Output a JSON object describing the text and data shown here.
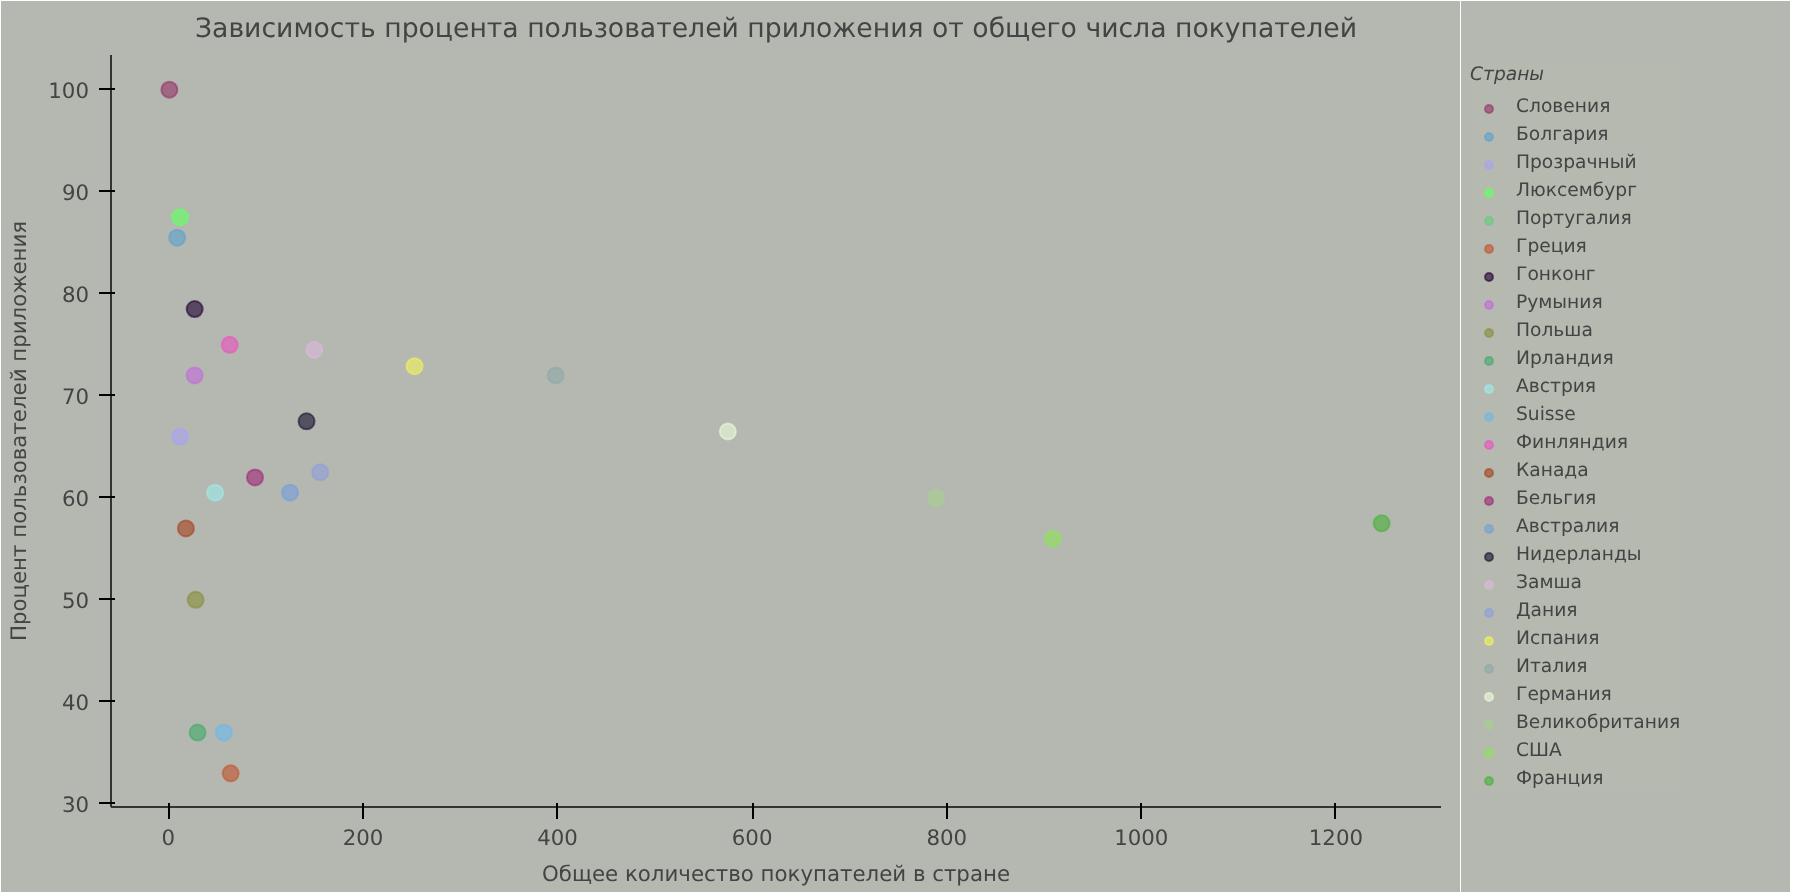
{
  "chart_data": {
    "type": "scatter",
    "title": "Зависимость процента пользователей приложения от общего числа покупателей",
    "xlabel": "Общее количество покупателей в стране",
    "ylabel": "Процент пользователей приложения",
    "legend_title": "Страны",
    "legend": "right",
    "marker": "circle",
    "grid": false,
    "xlim": [
      -59,
      1308
    ],
    "ylim": [
      29.7,
      103.4
    ],
    "xticks": [
      0,
      200,
      400,
      600,
      800,
      1000,
      1200
    ],
    "yticks": [
      30,
      40,
      50,
      60,
      70,
      80,
      90,
      100
    ],
    "series": [
      {
        "name": "Словения",
        "color": "#953c6c",
        "x": [
          1
        ],
        "values": [
          100
        ]
      },
      {
        "name": "Болгария",
        "color": "#62a3cc",
        "x": [
          9
        ],
        "values": [
          85.5
        ]
      },
      {
        "name": "Прозрачный",
        "color": "#a7a5f0",
        "x": [
          12
        ],
        "values": [
          66
        ]
      },
      {
        "name": "Люксембург",
        "color": "#66ff66",
        "x": [
          12
        ],
        "values": [
          87.5
        ]
      },
      {
        "name": "Португалия",
        "color": "#6dc980",
        "x": [
          null
        ],
        "values": [
          null
        ]
      },
      {
        "name": "Греция",
        "color": "#c05a38",
        "x": [
          64
        ],
        "values": [
          33
        ]
      },
      {
        "name": "Гонконг",
        "color": "#2a0a3a",
        "x": [
          27
        ],
        "values": [
          78.5
        ]
      },
      {
        "name": "Румыния",
        "color": "#c070d8",
        "x": [
          27
        ],
        "values": [
          72
        ]
      },
      {
        "name": "Польша",
        "color": "#8c9040",
        "x": [
          28
        ],
        "values": [
          50
        ]
      },
      {
        "name": "Ирландия",
        "color": "#4aaa70",
        "x": [
          30
        ],
        "values": [
          37
        ]
      },
      {
        "name": "Австрия",
        "color": "#a0e8e8",
        "x": [
          48
        ],
        "values": [
          60.5
        ]
      },
      {
        "name": "Suisse",
        "color": "#70b8e8",
        "x": [
          57
        ],
        "values": [
          37
        ]
      },
      {
        "name": "Финляндия",
        "color": "#e858c0",
        "x": [
          63
        ],
        "values": [
          75
        ]
      },
      {
        "name": "Канада",
        "color": "#a84828",
        "x": [
          18
        ],
        "values": [
          57
        ]
      },
      {
        "name": "Бельгия",
        "color": "#a0307a",
        "x": [
          89
        ],
        "values": [
          62
        ]
      },
      {
        "name": "Австралия",
        "color": "#78a0d8",
        "x": [
          125
        ],
        "values": [
          60.5
        ]
      },
      {
        "name": "Нидерланды",
        "color": "#201c38",
        "x": [
          142
        ],
        "values": [
          67.5
        ]
      },
      {
        "name": "Замша",
        "color": "#d8b8d8",
        "x": [
          150
        ],
        "values": [
          74.5
        ]
      },
      {
        "name": "Дания",
        "color": "#90a0d8",
        "x": [
          156
        ],
        "values": [
          62.5
        ]
      },
      {
        "name": "Испания",
        "color": "#f0f060",
        "x": [
          253
        ],
        "values": [
          72.9
        ]
      },
      {
        "name": "Италия",
        "color": "#90aaa8",
        "x": [
          398
        ],
        "values": [
          72
        ]
      },
      {
        "name": "Германия",
        "color": "#e8f8d8",
        "x": [
          575
        ],
        "values": [
          66.5
        ]
      },
      {
        "name": "Великобритания",
        "color": "#a8d090",
        "x": [
          789
        ],
        "values": [
          60
        ]
      },
      {
        "name": "США",
        "color": "#90e060",
        "x": [
          909
        ],
        "values": [
          56
        ]
      },
      {
        "name": "Франция",
        "color": "#50b040",
        "x": [
          1247
        ],
        "values": [
          57.5
        ]
      }
    ]
  }
}
